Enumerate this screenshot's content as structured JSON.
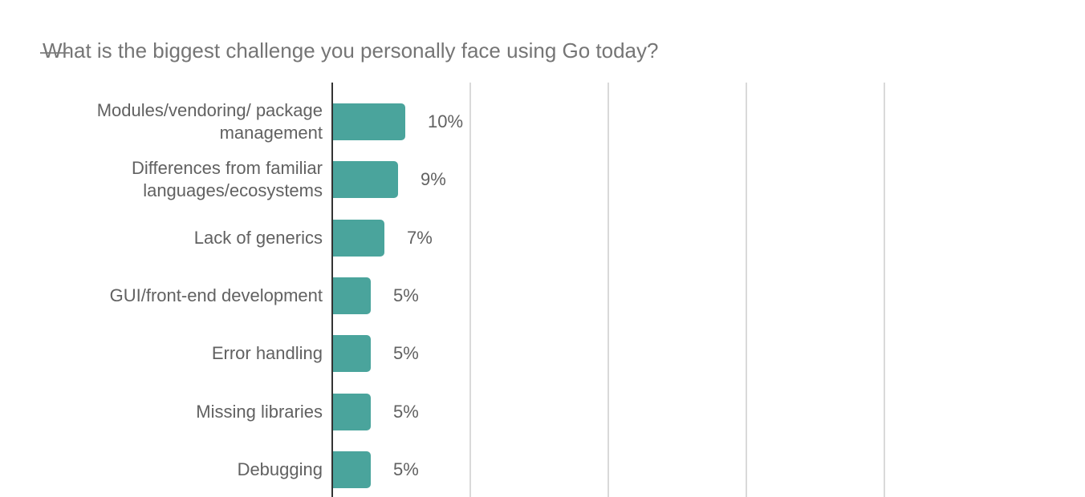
{
  "title": "What is the biggest challenge you personally face using Go today?",
  "chart_data": {
    "type": "bar",
    "orientation": "horizontal",
    "title": "What is the biggest challenge you personally face using Go today?",
    "categories": [
      "Modules/vendoring/ package management",
      "Differences from familiar languages/ecosystems",
      "Lack of generics",
      "GUI/front-end development",
      "Error handling",
      "Missing libraries",
      "Debugging"
    ],
    "category_lines": [
      [
        "Modules/vendoring/ package",
        "management"
      ],
      [
        "Differences from familiar",
        "languages/ecosystems"
      ],
      [
        "Lack of generics"
      ],
      [
        "GUI/front-end development"
      ],
      [
        "Error handling"
      ],
      [
        "Missing libraries"
      ],
      [
        "Debugging"
      ]
    ],
    "values": [
      10,
      9,
      7,
      5,
      5,
      5,
      5
    ],
    "value_labels": [
      "10%",
      "9%",
      "7%",
      "5%",
      "5%",
      "5%",
      "5%"
    ],
    "xlabel": "",
    "ylabel": "",
    "grid": true,
    "gridlines_percent_estimated": [
      20,
      40,
      60,
      80
    ],
    "axis_tick_labels_visible": false,
    "chart_cut_off_at_bottom": true,
    "colors": {
      "bar": "#4aa49c",
      "category_label": "#616161",
      "value_label": "#616161",
      "title": "#757575",
      "axis": "#333333",
      "gridline": "#d9d9d9",
      "background": "#ffffff"
    }
  }
}
